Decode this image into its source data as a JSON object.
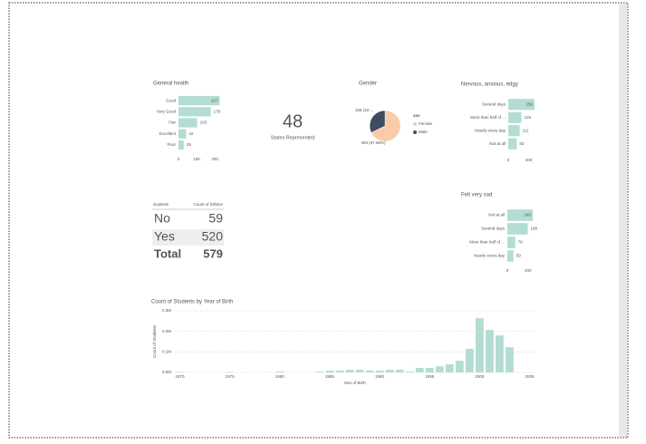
{
  "chart_data": [
    {
      "type": "hbar",
      "title": "General health",
      "categories": [
        "Good",
        "Very Good",
        "Fair",
        "Excellent",
        "Poor"
      ],
      "values": [
        227,
        178,
        103,
        42,
        29
      ],
      "color": "#b3ddd3",
      "xlim": [
        0,
        227
      ],
      "xticks": [
        0,
        100,
        200
      ]
    },
    {
      "type": "pie",
      "title": "Gender",
      "legend_title": "sex",
      "categories": [
        "Female",
        "Male"
      ],
      "values": [
        393,
        186
      ],
      "value_labels": [
        "393 (67.88%)",
        "186 (32...."
      ],
      "colors": [
        "#f9cba9",
        "#3f4b5e"
      ]
    },
    {
      "type": "hbar",
      "title": "Nervous, anxious, edgy",
      "categories": [
        "Several days",
        "More than half of ...",
        "Nearly every day",
        "Not at all"
      ],
      "values": [
        256,
        128,
        111,
        83
      ],
      "color": "#b3ddd3",
      "xlim": [
        0,
        256
      ],
      "xticks": [
        0,
        200
      ]
    },
    {
      "type": "hbar",
      "title": "Felt very sad",
      "categories": [
        "Not at all",
        "Several days",
        "More than half of ...",
        "Nearly every day"
      ],
      "values": [
        246,
        198,
        76,
        59
      ],
      "color": "#b3ddd3",
      "xlim": [
        0,
        246
      ],
      "xticks": [
        0,
        200
      ]
    },
    {
      "type": "column",
      "title": "Count of Students by Year of Birth",
      "x_label": "Year of Birth",
      "y_label": "Count of Students",
      "x": [
        1970,
        1975,
        1980,
        1984,
        1985,
        1986,
        1987,
        1988,
        1989,
        1990,
        1991,
        1992,
        1993,
        1994,
        1995,
        1996,
        1997,
        1998,
        1999,
        2000,
        2001,
        2002,
        2003
      ],
      "values": [
        0.002,
        0.002,
        0.004,
        0.004,
        0.009,
        0.009,
        0.013,
        0.013,
        0.009,
        0.009,
        0.013,
        0.013,
        0.004,
        0.022,
        0.022,
        0.03,
        0.04,
        0.057,
        0.115,
        0.264,
        0.207,
        0.18,
        0.123
      ],
      "color": "#b3ddd3",
      "xlim": [
        1969.5,
        2005.5
      ],
      "xticks": [
        1970,
        1975,
        1980,
        1985,
        1990,
        1995,
        2000,
        2005
      ],
      "ylim": [
        0,
        0.3
      ],
      "yticks": [
        {
          "value": 0,
          "label": "0.0M"
        },
        {
          "value": 0.1,
          "label": "0.1M"
        },
        {
          "value": 0.2,
          "label": "0.2M"
        },
        {
          "value": 0.3,
          "label": "0.3M"
        }
      ],
      "grid": true
    }
  ],
  "card": {
    "value": "48",
    "label": "States Represented"
  },
  "table": {
    "columns": [
      "students",
      "Count of fulltime"
    ],
    "rows": [
      [
        "No",
        "59"
      ],
      [
        "Yes",
        "520"
      ]
    ],
    "total": [
      "Total",
      "579"
    ]
  }
}
